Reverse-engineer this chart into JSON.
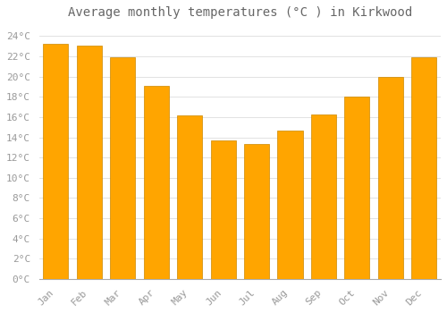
{
  "title": "Average monthly temperatures (°C ) in Kirkwood",
  "months": [
    "Jan",
    "Feb",
    "Mar",
    "Apr",
    "May",
    "Jun",
    "Jul",
    "Aug",
    "Sep",
    "Oct",
    "Nov",
    "Dec"
  ],
  "values": [
    23.2,
    23.1,
    21.9,
    19.1,
    16.2,
    13.7,
    13.3,
    14.7,
    16.3,
    18.0,
    20.0,
    21.9
  ],
  "bar_color": "#FFA500",
  "bar_edge_color": "#CC8800",
  "background_color": "#FFFFFF",
  "grid_color": "#DDDDDD",
  "ylim": [
    0,
    25
  ],
  "yticks": [
    0,
    2,
    4,
    6,
    8,
    10,
    12,
    14,
    16,
    18,
    20,
    22,
    24
  ],
  "title_fontsize": 10,
  "tick_fontsize": 8,
  "tick_color": "#999999",
  "title_color": "#666666"
}
